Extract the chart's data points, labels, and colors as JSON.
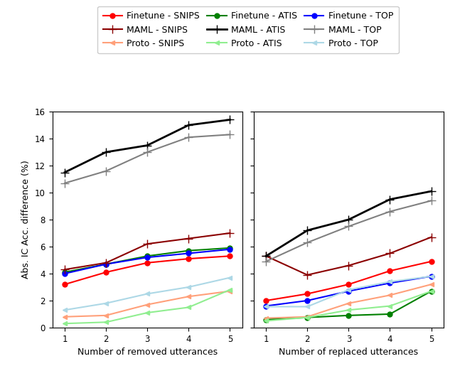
{
  "x": [
    1,
    2,
    3,
    4,
    5
  ],
  "left_panel": {
    "finetune_snips": [
      3.2,
      4.1,
      4.8,
      5.1,
      5.3
    ],
    "finetune_atis": [
      4.1,
      4.7,
      5.3,
      5.7,
      5.9
    ],
    "finetune_top": [
      4.0,
      4.7,
      5.2,
      5.5,
      5.8
    ],
    "maml_snips": [
      4.3,
      4.8,
      6.2,
      6.6,
      7.0
    ],
    "maml_atis": [
      11.5,
      13.0,
      13.5,
      15.0,
      15.4
    ],
    "maml_top": [
      10.7,
      11.6,
      13.0,
      14.1,
      14.3
    ],
    "proto_snips": [
      0.8,
      0.9,
      1.7,
      2.3,
      2.7
    ],
    "proto_atis": [
      0.3,
      0.4,
      1.1,
      1.5,
      2.8
    ],
    "proto_top": [
      1.3,
      1.8,
      2.5,
      3.0,
      3.7
    ]
  },
  "right_panel": {
    "finetune_snips": [
      2.0,
      2.5,
      3.2,
      4.2,
      4.9
    ],
    "finetune_atis": [
      0.6,
      0.75,
      0.9,
      1.0,
      2.7
    ],
    "finetune_top": [
      1.6,
      2.0,
      2.7,
      3.3,
      3.8
    ],
    "maml_snips": [
      5.3,
      3.9,
      4.6,
      5.5,
      6.7
    ],
    "maml_atis": [
      5.3,
      7.2,
      8.0,
      9.5,
      10.1
    ],
    "maml_top": [
      4.9,
      6.3,
      7.5,
      8.6,
      9.4
    ],
    "proto_snips": [
      0.7,
      0.8,
      1.8,
      2.4,
      3.2
    ],
    "proto_atis": [
      0.5,
      0.75,
      1.3,
      1.6,
      2.7
    ],
    "proto_top": [
      1.55,
      1.55,
      2.8,
      3.4,
      3.8
    ]
  },
  "colors": {
    "finetune_snips": "#ff0000",
    "finetune_atis": "#008000",
    "finetune_top": "#0000ff",
    "maml_snips": "#8b0000",
    "maml_atis": "#000000",
    "maml_top": "#808080",
    "proto_snips": "#ffa07a",
    "proto_atis": "#90ee90",
    "proto_top": "#add8e6"
  },
  "ylabel": "Abs. IC Acc. difference (%)",
  "xlabel_left": "Number of removed utterances",
  "xlabel_right": "Number of replaced utterances",
  "ylim": [
    0,
    16
  ],
  "yticks": [
    0,
    2,
    4,
    6,
    8,
    10,
    12,
    14,
    16
  ],
  "legend_col0_keys": [
    "finetune_snips",
    "finetune_atis",
    "finetune_top"
  ],
  "legend_col1_keys": [
    "maml_snips",
    "maml_atis",
    "maml_top"
  ],
  "legend_col2_keys": [
    "proto_snips",
    "proto_atis",
    "proto_top"
  ],
  "legend_col0_labels": [
    "Finetune - SNIPS",
    "Finetune - ATIS",
    "Finetune - TOP"
  ],
  "legend_col1_labels": [
    "MAML - SNIPS",
    "MAML - ATIS",
    "MAML - TOP"
  ],
  "legend_col2_labels": [
    "Proto - SNIPS",
    "Proto - ATIS",
    "Proto - TOP"
  ]
}
